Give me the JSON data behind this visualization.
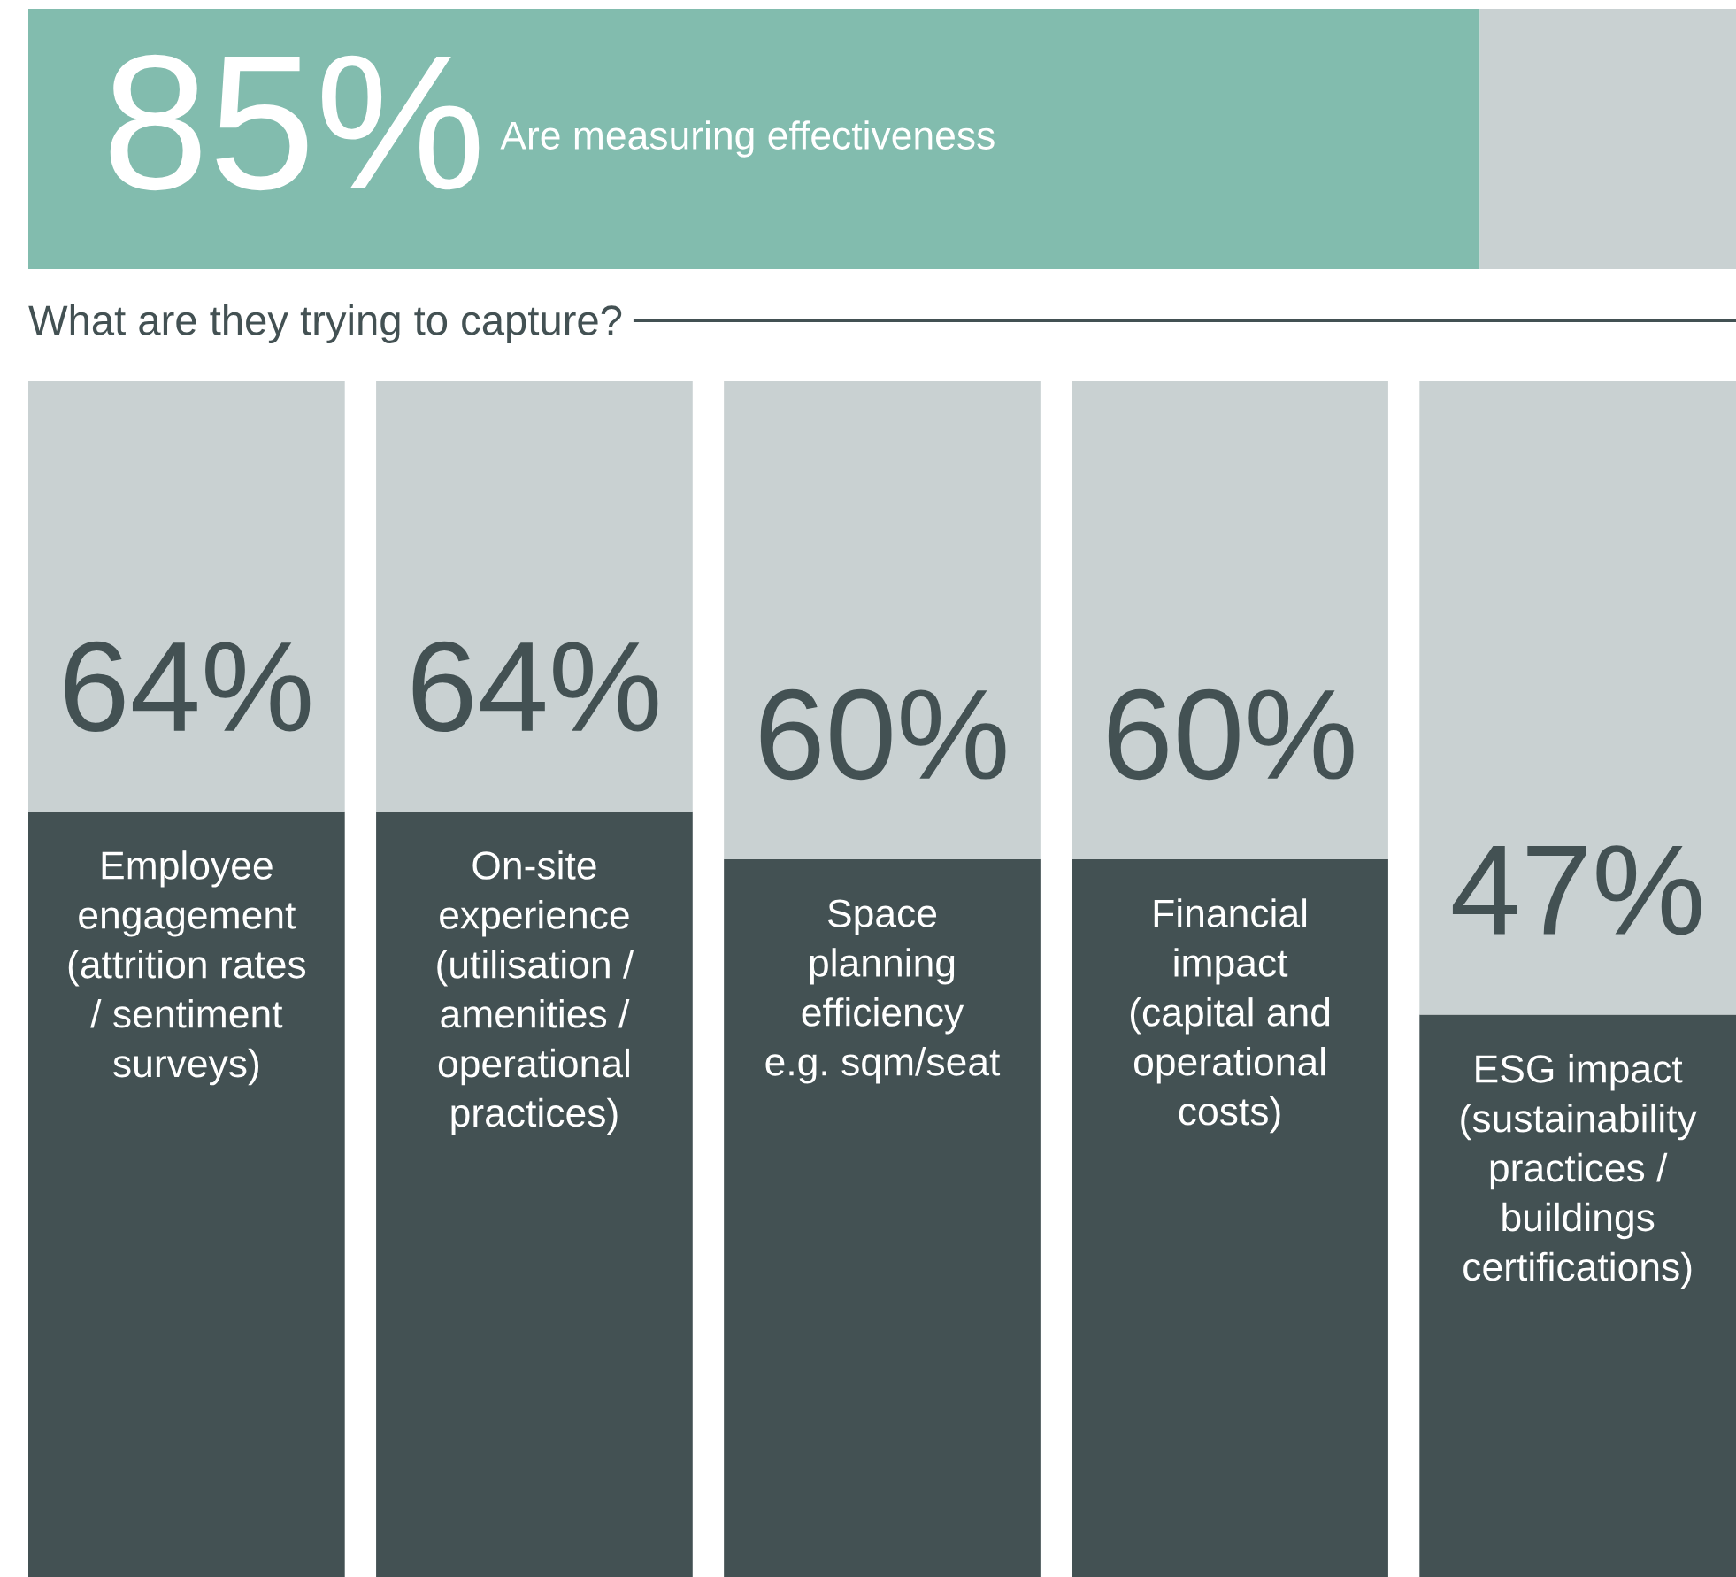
{
  "chart_data": [
    {
      "type": "bar",
      "orientation": "horizontal",
      "stacked": true,
      "categories": [
        "Are measuring effectiveness"
      ],
      "xlim": [
        0,
        100
      ],
      "tick_labels": false,
      "series": [
        {
          "color": "#82bcae",
          "values": [
            85
          ],
          "value_labels": [
            "85%"
          ]
        },
        {
          "color": "#c9d1d2",
          "values": [
            15
          ]
        }
      ]
    },
    {
      "type": "bar",
      "stacked": true,
      "title": "What are they trying to capture?",
      "categories": [
        "Employee\nengagement\n(attrition rates\n/ sentiment\nsurveys)",
        "On-site\nexperience\n(utilisation /\namenities /\noperational\npractices)",
        "Space\nplanning\nefficiency\ne.g. sqm/seat",
        "Financial\nimpact\n(capital and\noperational\ncosts)",
        "ESG impact\n(sustainability\npractices /\nbuildings\ncertifications)"
      ],
      "ylim": [
        0,
        100
      ],
      "tick_labels": false,
      "series": [
        {
          "color": "#435153",
          "values": [
            64,
            64,
            60,
            60,
            47
          ],
          "value_labels": [
            "64%",
            "64%",
            "60%",
            "60%",
            "47%"
          ]
        },
        {
          "color": "#c9d1d2",
          "values": [
            36,
            36,
            40,
            40,
            53
          ]
        }
      ]
    }
  ]
}
